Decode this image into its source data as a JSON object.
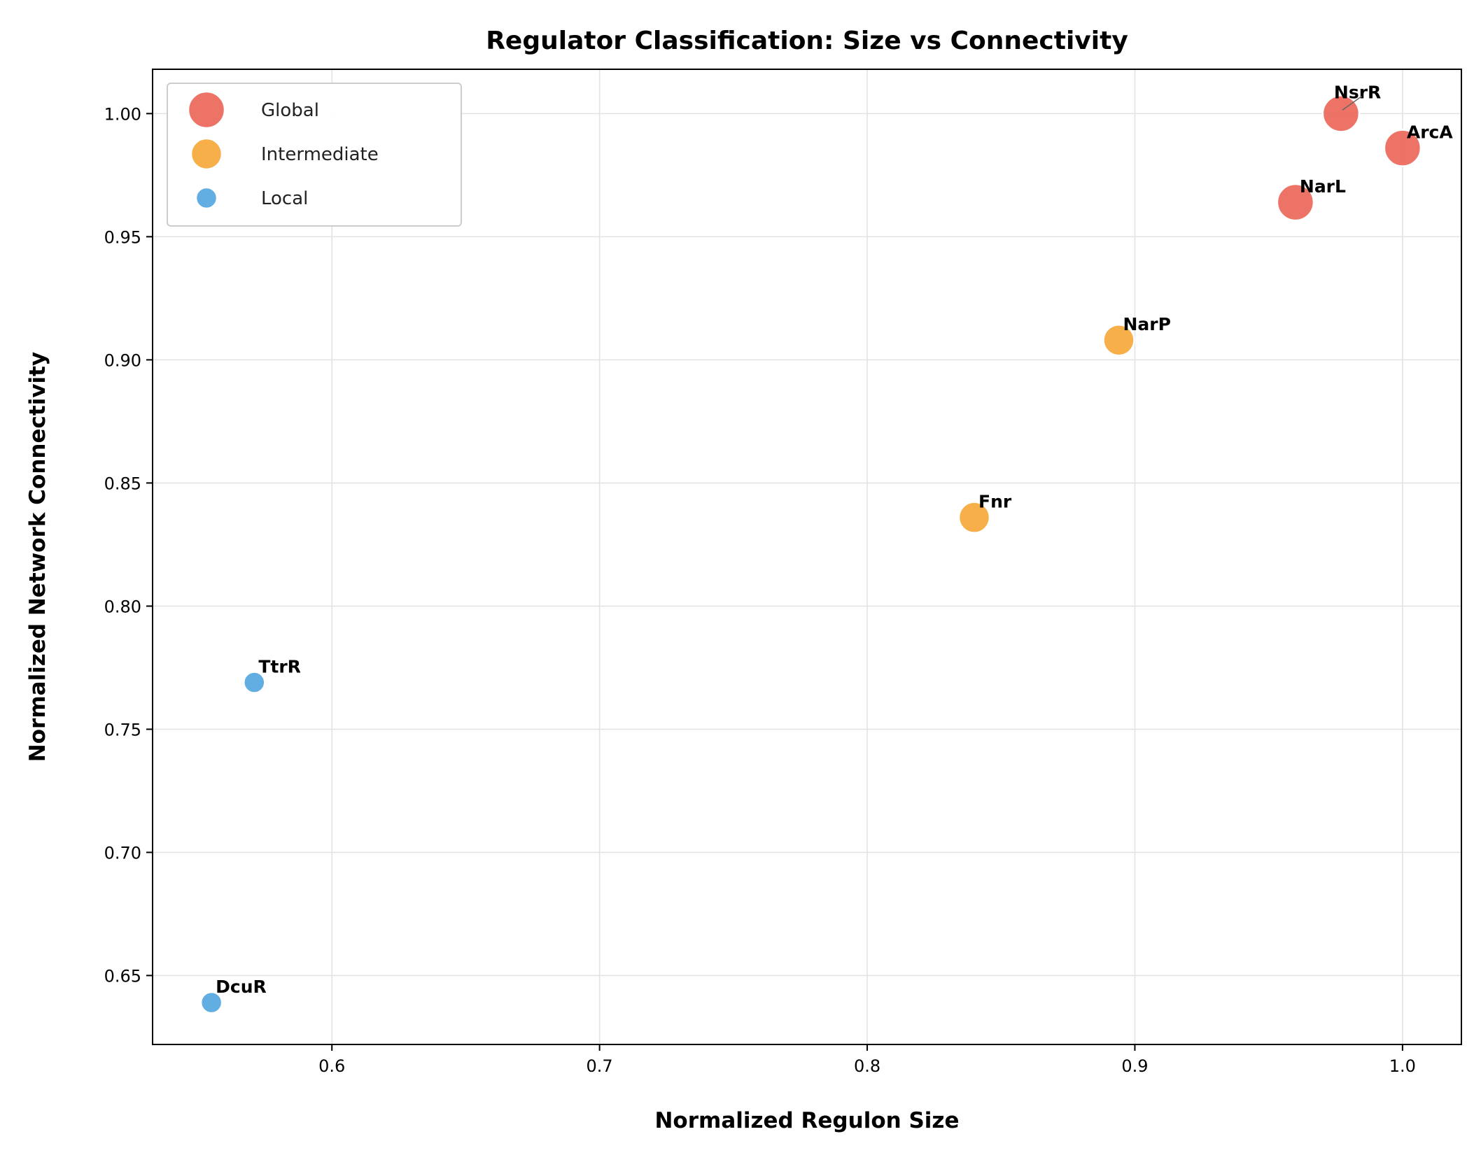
{
  "chart_data": {
    "type": "scatter",
    "title": "Regulator Classification: Size vs Connectivity",
    "xlabel": "Normalized Regulon Size",
    "ylabel": "Normalized Network Connectivity",
    "xlim": [
      0.533,
      1.022
    ],
    "ylim": [
      0.622,
      1.018
    ],
    "xticks": [
      0.6,
      0.7,
      0.8,
      0.9,
      1.0
    ],
    "xtick_labels": [
      "0.6",
      "0.7",
      "0.8",
      "0.9",
      "1.0"
    ],
    "yticks": [
      0.65,
      0.7,
      0.75,
      0.8,
      0.85,
      0.9,
      0.95,
      1.0
    ],
    "ytick_labels": [
      "0.65",
      "0.70",
      "0.75",
      "0.80",
      "0.85",
      "0.90",
      "0.95",
      "1.00"
    ],
    "grid": true,
    "legend_position": "upper-left",
    "series": [
      {
        "name": "Global",
        "color": "#ec6b5e",
        "points": [
          {
            "label": "NsrR",
            "x": 0.977,
            "y": 1.0
          },
          {
            "label": "ArcA",
            "x": 1.0,
            "y": 0.986
          },
          {
            "label": "NarL",
            "x": 0.96,
            "y": 0.964
          }
        ]
      },
      {
        "name": "Intermediate",
        "color": "#f5ab3f",
        "points": [
          {
            "label": "NarP",
            "x": 0.894,
            "y": 0.908
          },
          {
            "label": "Fnr",
            "x": 0.84,
            "y": 0.836
          }
        ]
      },
      {
        "name": "Local",
        "color": "#5aa9e0",
        "points": [
          {
            "label": "TtrR",
            "x": 0.571,
            "y": 0.769
          },
          {
            "label": "DcuR",
            "x": 0.555,
            "y": 0.639
          }
        ]
      }
    ]
  }
}
